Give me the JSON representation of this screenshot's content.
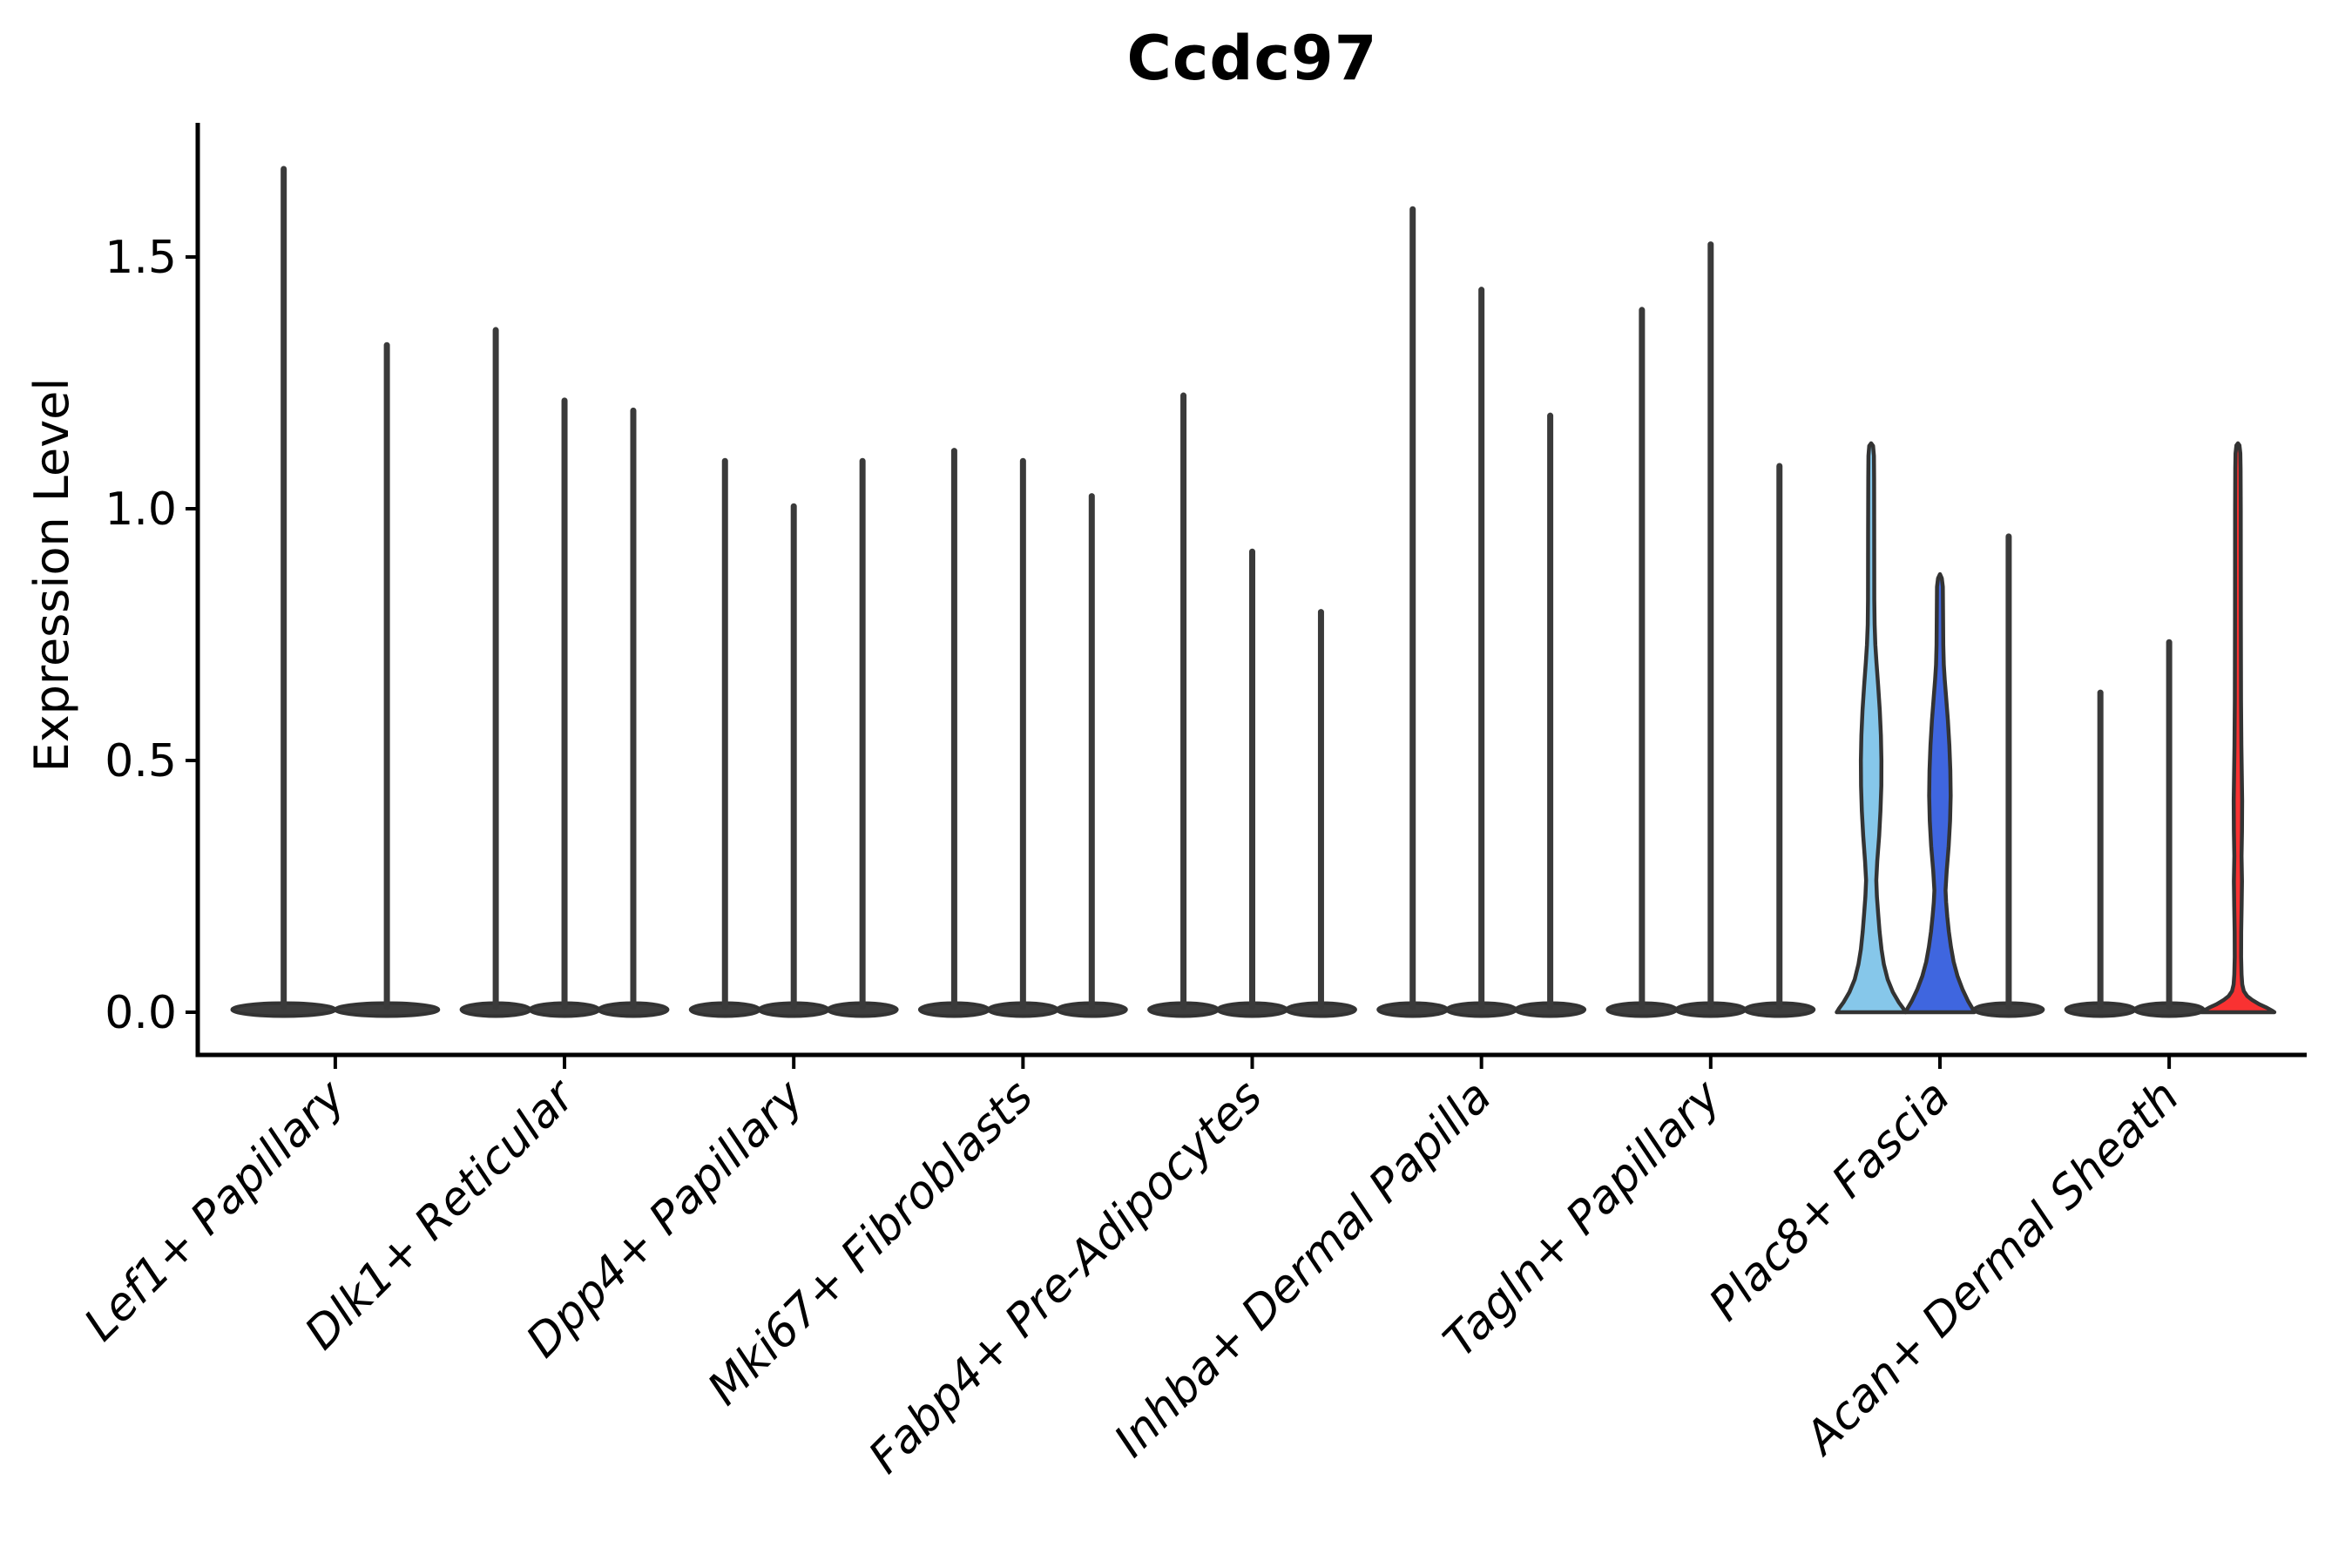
{
  "chart_data": {
    "type": "violin",
    "title": "Ccdc97",
    "ylabel": "Expression Level",
    "xlabel": "",
    "legend": "none",
    "grid": false,
    "ytick_labels": [
      "0.0",
      "0.5",
      "1.0",
      "1.5"
    ],
    "ytick_values": [
      0.0,
      0.5,
      1.0,
      1.5
    ],
    "ylim": [
      -0.085,
      1.78
    ],
    "categories": [
      "Lef1+ Papillary",
      "Dlk1+ Reticular",
      "Dpp4+ Papillary",
      "Mki67+ Fibroblasts",
      "Fabp4+ Pre-Adipocytes",
      "Inhba+ Dermal Papilla",
      "Tagln+ Papillary",
      "Plac8+ Fascia",
      "Acan+ Dermal Sheath"
    ],
    "groups": [
      {
        "category": "Lef1+ Papillary",
        "violins": [
          {
            "max": 1.68,
            "kind": "spike"
          },
          {
            "max": 1.33,
            "kind": "spike"
          }
        ]
      },
      {
        "category": "Dlk1+ Reticular",
        "violins": [
          {
            "max": 1.36,
            "kind": "spike"
          },
          {
            "max": 1.22,
            "kind": "spike"
          },
          {
            "max": 1.2,
            "kind": "spike"
          }
        ]
      },
      {
        "category": "Dpp4+ Papillary",
        "violins": [
          {
            "max": 1.1,
            "kind": "spike"
          },
          {
            "max": 1.01,
            "kind": "spike"
          },
          {
            "max": 1.1,
            "kind": "spike"
          }
        ]
      },
      {
        "category": "Mki67+ Fibroblasts",
        "violins": [
          {
            "max": 1.12,
            "kind": "spike"
          },
          {
            "max": 1.1,
            "kind": "spike"
          },
          {
            "max": 1.03,
            "kind": "spike"
          }
        ]
      },
      {
        "category": "Fabp4+ Pre-Adipocytes",
        "violins": [
          {
            "max": 1.23,
            "kind": "spike"
          },
          {
            "max": 0.92,
            "kind": "spike"
          },
          {
            "max": 0.8,
            "kind": "spike"
          }
        ]
      },
      {
        "category": "Inhba+ Dermal Papilla",
        "violins": [
          {
            "max": 1.6,
            "kind": "spike"
          },
          {
            "max": 1.44,
            "kind": "spike"
          },
          {
            "max": 1.19,
            "kind": "spike"
          }
        ]
      },
      {
        "category": "Tagln+ Papillary",
        "violins": [
          {
            "max": 1.4,
            "kind": "spike"
          },
          {
            "max": 1.53,
            "kind": "spike"
          },
          {
            "max": 1.09,
            "kind": "spike"
          }
        ]
      },
      {
        "category": "Plac8+ Fascia",
        "violins": [
          {
            "max": 1.13,
            "kind": "bell",
            "profile": "sky",
            "fill": "#86C7EA"
          },
          {
            "max": 0.87,
            "kind": "bell",
            "profile": "royal",
            "fill": "#3F66DF"
          },
          {
            "max": 0.95,
            "kind": "spike"
          }
        ]
      },
      {
        "category": "Acan+ Dermal Sheath",
        "violins": [
          {
            "max": 0.64,
            "kind": "spike"
          },
          {
            "max": 0.74,
            "kind": "spike"
          },
          {
            "max": 1.13,
            "kind": "bell",
            "profile": "redflare",
            "fill": "#F93232"
          }
        ]
      }
    ],
    "profiles": {
      "sky": [
        [
          0.0,
          1.0
        ],
        [
          0.008,
          0.93
        ],
        [
          0.02,
          0.8
        ],
        [
          0.04,
          0.63
        ],
        [
          0.065,
          0.48
        ],
        [
          0.095,
          0.37
        ],
        [
          0.125,
          0.3
        ],
        [
          0.16,
          0.245
        ],
        [
          0.195,
          0.205
        ],
        [
          0.23,
          0.168
        ],
        [
          0.262,
          0.148
        ],
        [
          0.3,
          0.178
        ],
        [
          0.35,
          0.232
        ],
        [
          0.4,
          0.272
        ],
        [
          0.45,
          0.295
        ],
        [
          0.5,
          0.298
        ],
        [
          0.55,
          0.283
        ],
        [
          0.6,
          0.25
        ],
        [
          0.65,
          0.203
        ],
        [
          0.695,
          0.155
        ],
        [
          0.73,
          0.122
        ],
        [
          0.77,
          0.1
        ],
        [
          0.82,
          0.092
        ],
        [
          0.95,
          0.088
        ],
        [
          1.06,
          0.085
        ],
        [
          1.105,
          0.08
        ],
        [
          1.125,
          0.055
        ],
        [
          1.13,
          0.0
        ]
      ],
      "royal": [
        [
          0.0,
          1.0
        ],
        [
          0.008,
          0.94
        ],
        [
          0.022,
          0.82
        ],
        [
          0.045,
          0.66
        ],
        [
          0.072,
          0.51
        ],
        [
          0.1,
          0.4
        ],
        [
          0.13,
          0.32
        ],
        [
          0.16,
          0.26
        ],
        [
          0.19,
          0.215
        ],
        [
          0.218,
          0.18
        ],
        [
          0.242,
          0.162
        ],
        [
          0.28,
          0.195
        ],
        [
          0.33,
          0.255
        ],
        [
          0.38,
          0.295
        ],
        [
          0.43,
          0.312
        ],
        [
          0.48,
          0.302
        ],
        [
          0.53,
          0.275
        ],
        [
          0.58,
          0.232
        ],
        [
          0.625,
          0.182
        ],
        [
          0.66,
          0.14
        ],
        [
          0.69,
          0.112
        ],
        [
          0.73,
          0.097
        ],
        [
          0.8,
          0.09
        ],
        [
          0.845,
          0.085
        ],
        [
          0.862,
          0.055
        ],
        [
          0.87,
          0.0
        ]
      ],
      "redflare": [
        [
          0.0,
          1.06
        ],
        [
          0.003,
          1.0
        ],
        [
          0.009,
          0.84
        ],
        [
          0.016,
          0.62
        ],
        [
          0.024,
          0.42
        ],
        [
          0.032,
          0.27
        ],
        [
          0.042,
          0.17
        ],
        [
          0.055,
          0.125
        ],
        [
          0.075,
          0.105
        ],
        [
          0.11,
          0.092
        ],
        [
          0.16,
          0.095
        ],
        [
          0.21,
          0.108
        ],
        [
          0.26,
          0.118
        ],
        [
          0.31,
          0.106
        ],
        [
          0.36,
          0.117
        ],
        [
          0.42,
          0.122
        ],
        [
          0.47,
          0.112
        ],
        [
          0.53,
          0.1
        ],
        [
          0.62,
          0.09
        ],
        [
          0.78,
          0.086
        ],
        [
          1.0,
          0.083
        ],
        [
          1.08,
          0.078
        ],
        [
          1.11,
          0.07
        ],
        [
          1.126,
          0.045
        ],
        [
          1.13,
          0.0
        ]
      ]
    },
    "colors": {
      "spike_fill": "#3D3D3D",
      "spike_stem": "#3A3A3A",
      "outline": "#333333",
      "axis": "#000000",
      "text": "#000000",
      "background": "#FFFFFF"
    }
  }
}
